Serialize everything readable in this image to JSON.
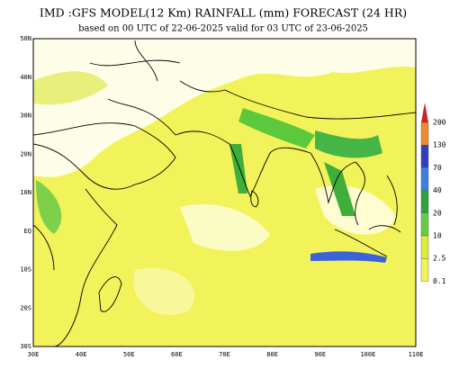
{
  "header": {
    "title": "IMD :GFS MODEL(12 Km) RAINFALL (mm) FORECAST (24 HR)",
    "subtitle": "based on 00 UTC of 22-06-2025 valid for 03 UTC of 23-06-2025"
  },
  "map": {
    "lat_labels": [
      "50N",
      "40N",
      "30N",
      "20N",
      "10N",
      "EQ",
      "10S",
      "20S",
      "30S"
    ],
    "lon_labels": [
      "30E",
      "40E",
      "50E",
      "60E",
      "70E",
      "80E",
      "90E",
      "100E",
      "110E"
    ]
  },
  "legend": {
    "labels": [
      "200",
      "130",
      "70",
      "40",
      "20",
      "10",
      "2.5",
      "0.1"
    ]
  }
}
